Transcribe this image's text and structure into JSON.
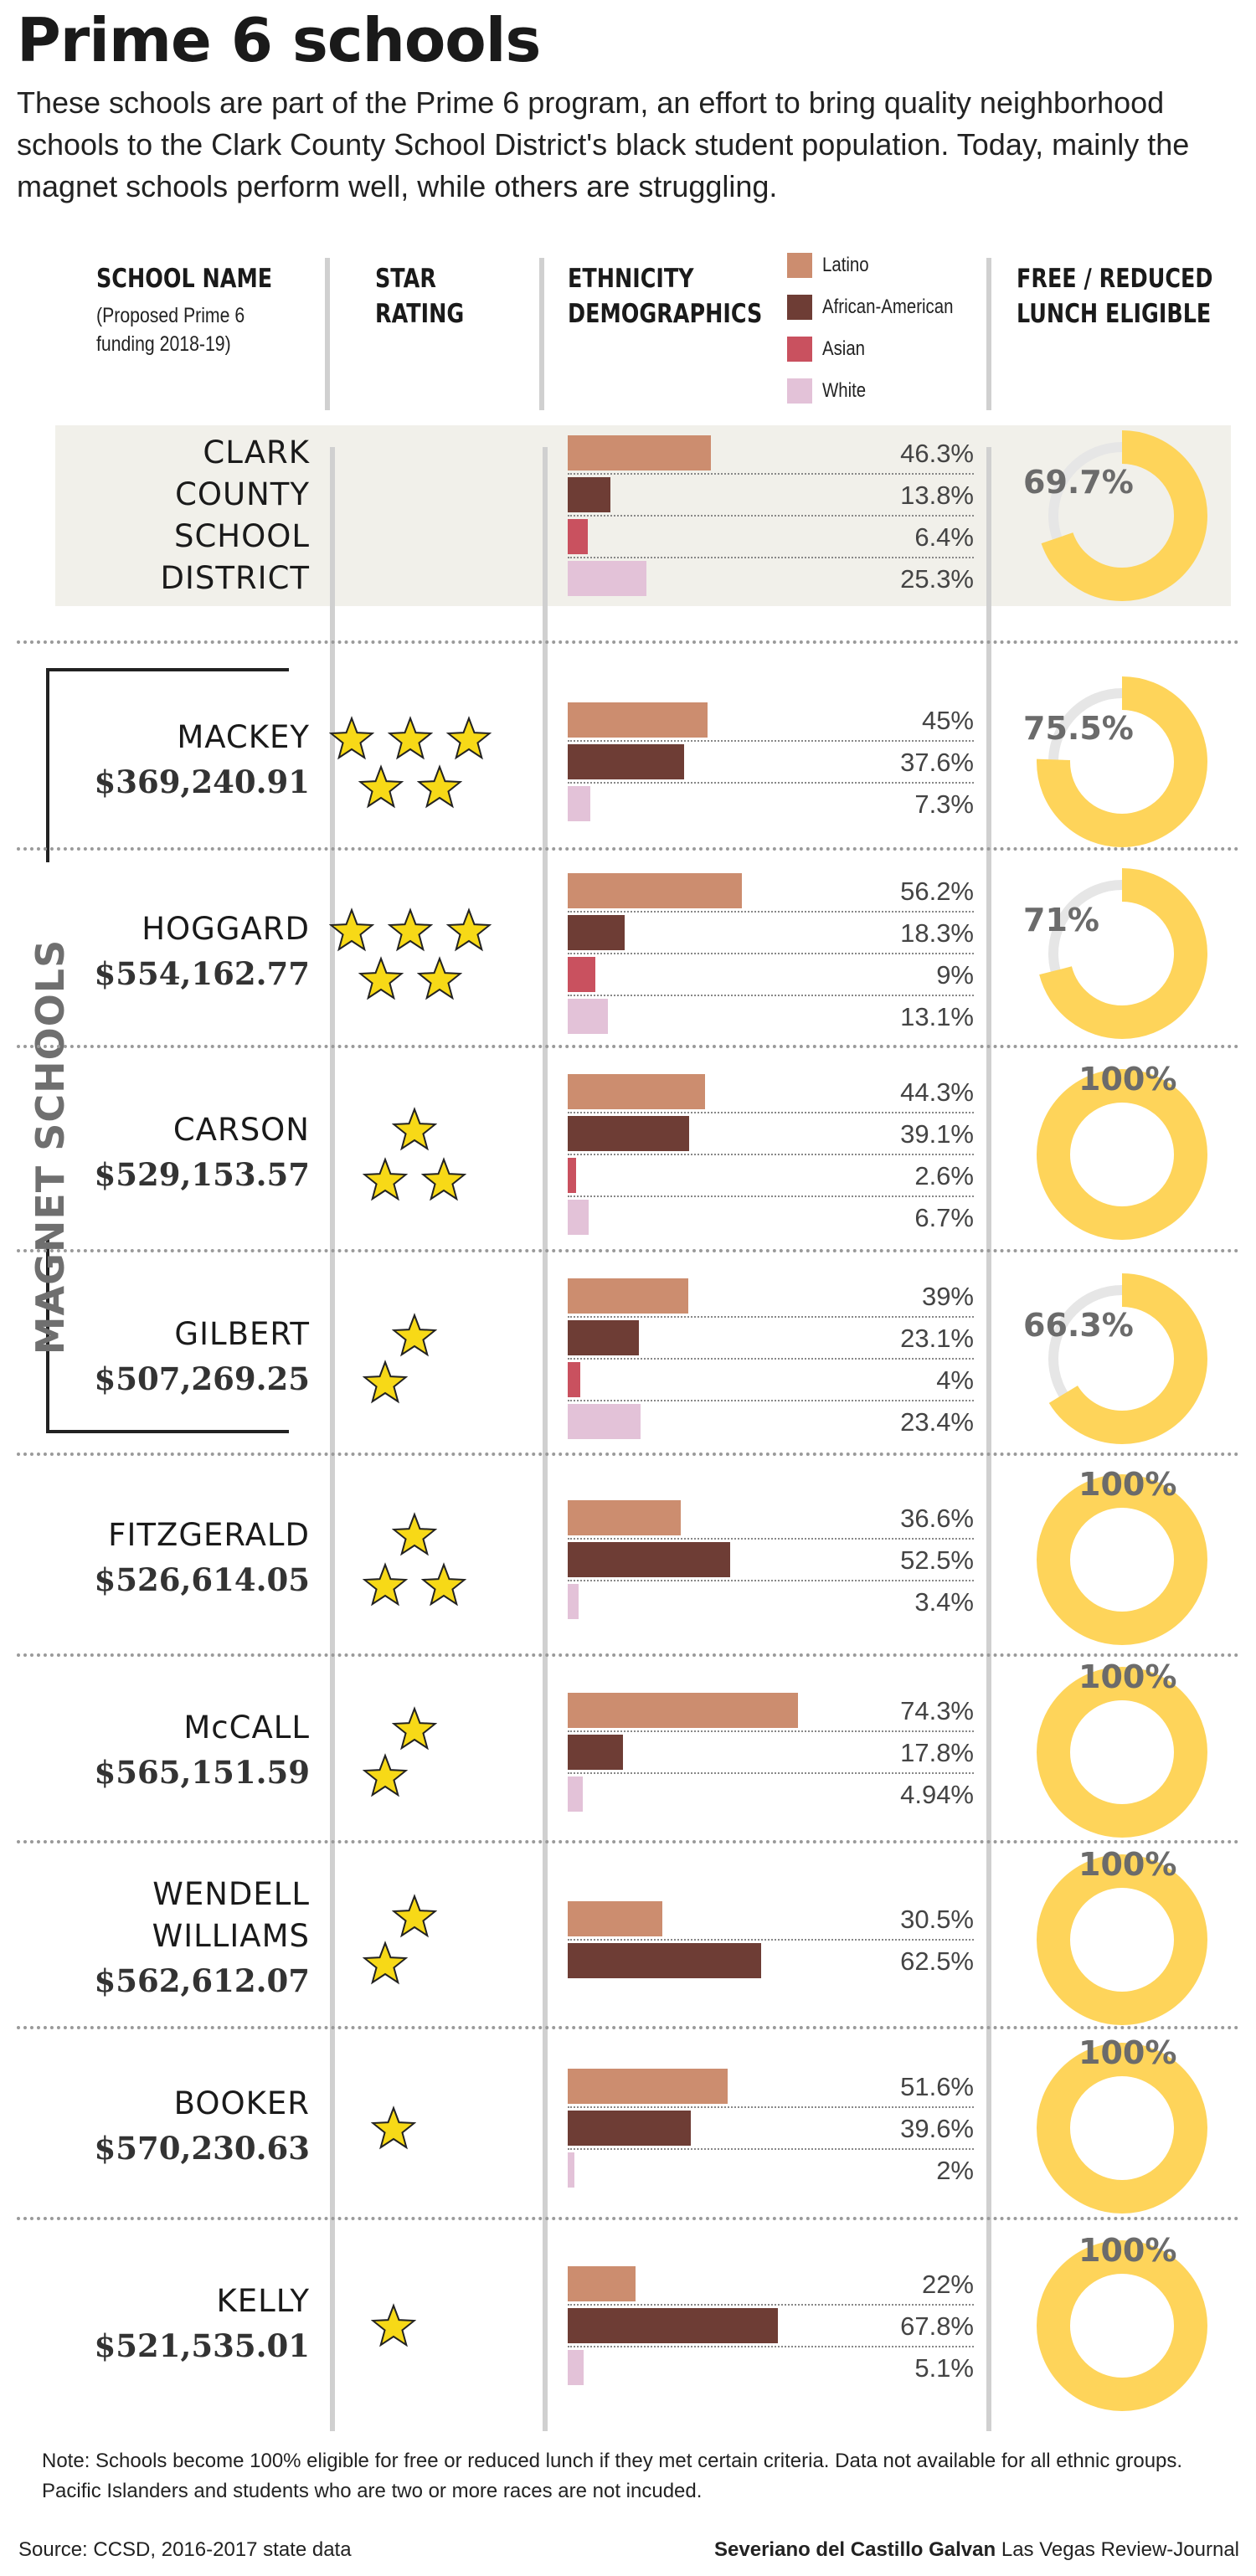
{
  "title": "Prime 6 schools",
  "intro": "These schools are part of the Prime 6 program, an effort to bring quality neighborhood schools to the Clark County School District's black student population. Today, mainly the magnet schools perform well, while others are struggling.",
  "headers": {
    "school_name": "SCHOOL NAME",
    "school_name_sub_1": "(Proposed Prime 6",
    "school_name_sub_2": "funding 2018-19)",
    "star_1": "STAR",
    "star_2": "RATING",
    "eth_1": "ETHNICITY",
    "eth_2": "DEMOGRAPHICS",
    "lunch_1": "FREE / REDUCED",
    "lunch_2": "LUNCH ELIGIBLE"
  },
  "legend": [
    {
      "label": "Latino",
      "color": "#cc8d6f"
    },
    {
      "label": "African-American",
      "color": "#6e3d35"
    },
    {
      "label": "Asian",
      "color": "#c9515f"
    },
    {
      "label": "White",
      "color": "#e3c2d8"
    }
  ],
  "colors": {
    "donut_fill": "#fed45a",
    "donut_track": "#e6e6e6",
    "star_fill": "#f7d917"
  },
  "group_label": "MAGNET SCHOOLS",
  "chart_data": {
    "type": "bar",
    "rows": [
      {
        "name_lines": [
          "CLARK",
          "COUNTY",
          "SCHOOL",
          "DISTRICT"
        ],
        "funding": "",
        "stars": 0,
        "ethnicity": [
          {
            "group": "Latino",
            "value": 46.3,
            "label": "46.3%"
          },
          {
            "group": "African-American",
            "value": 13.8,
            "label": "13.8%"
          },
          {
            "group": "Asian",
            "value": 6.4,
            "label": "6.4%"
          },
          {
            "group": "White",
            "value": 25.3,
            "label": "25.3%"
          }
        ],
        "lunch": 69.7,
        "lunch_label": "69.7%"
      },
      {
        "name_lines": [
          "MACKEY"
        ],
        "funding": "$369,240.91",
        "stars": 5,
        "ethnicity": [
          {
            "group": "Latino",
            "value": 45,
            "label": "45%"
          },
          {
            "group": "African-American",
            "value": 37.6,
            "label": "37.6%"
          },
          {
            "group": "White",
            "value": 7.3,
            "label": "7.3%"
          }
        ],
        "lunch": 75.5,
        "lunch_label": "75.5%"
      },
      {
        "name_lines": [
          "HOGGARD"
        ],
        "funding": "$554,162.77",
        "stars": 5,
        "ethnicity": [
          {
            "group": "Latino",
            "value": 56.2,
            "label": "56.2%"
          },
          {
            "group": "African-American",
            "value": 18.3,
            "label": "18.3%"
          },
          {
            "group": "Asian",
            "value": 9,
            "label": "9%"
          },
          {
            "group": "White",
            "value": 13.1,
            "label": "13.1%"
          }
        ],
        "lunch": 71,
        "lunch_label": "71%"
      },
      {
        "name_lines": [
          "CARSON"
        ],
        "funding": "$529,153.57",
        "stars": 3,
        "ethnicity": [
          {
            "group": "Latino",
            "value": 44.3,
            "label": "44.3%"
          },
          {
            "group": "African-American",
            "value": 39.1,
            "label": "39.1%"
          },
          {
            "group": "Asian",
            "value": 2.6,
            "label": "2.6%"
          },
          {
            "group": "White",
            "value": 6.7,
            "label": "6.7%"
          }
        ],
        "lunch": 100,
        "lunch_label": "100%"
      },
      {
        "name_lines": [
          "GILBERT"
        ],
        "funding": "$507,269.25",
        "stars": 2,
        "ethnicity": [
          {
            "group": "Latino",
            "value": 39,
            "label": "39%"
          },
          {
            "group": "African-American",
            "value": 23.1,
            "label": "23.1%"
          },
          {
            "group": "Asian",
            "value": 4,
            "label": "4%"
          },
          {
            "group": "White",
            "value": 23.4,
            "label": "23.4%"
          }
        ],
        "lunch": 66.3,
        "lunch_label": "66.3%"
      },
      {
        "name_lines": [
          "FITZGERALD"
        ],
        "funding": "$526,614.05",
        "stars": 3,
        "ethnicity": [
          {
            "group": "Latino",
            "value": 36.6,
            "label": "36.6%"
          },
          {
            "group": "African-American",
            "value": 52.5,
            "label": "52.5%"
          },
          {
            "group": "White",
            "value": 3.4,
            "label": "3.4%"
          }
        ],
        "lunch": 100,
        "lunch_label": "100%"
      },
      {
        "name_lines": [
          "McCALL"
        ],
        "funding": "$565,151.59",
        "stars": 2,
        "ethnicity": [
          {
            "group": "Latino",
            "value": 74.3,
            "label": "74.3%"
          },
          {
            "group": "African-American",
            "value": 17.8,
            "label": "17.8%"
          },
          {
            "group": "White",
            "value": 4.94,
            "label": "4.94%"
          }
        ],
        "lunch": 100,
        "lunch_label": "100%"
      },
      {
        "name_lines": [
          "WENDELL",
          "WILLIAMS"
        ],
        "funding": "$562,612.07",
        "stars": 2,
        "ethnicity": [
          {
            "group": "Latino",
            "value": 30.5,
            "label": "30.5%"
          },
          {
            "group": "African-American",
            "value": 62.5,
            "label": "62.5%"
          }
        ],
        "lunch": 100,
        "lunch_label": "100%"
      },
      {
        "name_lines": [
          "BOOKER"
        ],
        "funding": "$570,230.63",
        "stars": 1,
        "ethnicity": [
          {
            "group": "Latino",
            "value": 51.6,
            "label": "51.6%"
          },
          {
            "group": "African-American",
            "value": 39.6,
            "label": "39.6%"
          },
          {
            "group": "White",
            "value": 2,
            "label": "2%"
          }
        ],
        "lunch": 100,
        "lunch_label": "100%"
      },
      {
        "name_lines": [
          "KELLY"
        ],
        "funding": "$521,535.01",
        "stars": 1,
        "ethnicity": [
          {
            "group": "Latino",
            "value": 22,
            "label": "22%"
          },
          {
            "group": "African-American",
            "value": 67.8,
            "label": "67.8%"
          },
          {
            "group": "White",
            "value": 5.1,
            "label": "5.1%"
          }
        ],
        "lunch": 100,
        "lunch_label": "100%"
      }
    ]
  },
  "note": "Note: Schools become 100% eligible for free or reduced lunch if they met certain criteria. Data not available for all ethnic groups. Pacific Islanders and students who are two or more races are not incuded.",
  "source": "Source: CCSD, 2016-2017 state data",
  "credit_name": "Severiano del Castillo Galvan",
  "credit_org": "Las Vegas Review-Journal"
}
